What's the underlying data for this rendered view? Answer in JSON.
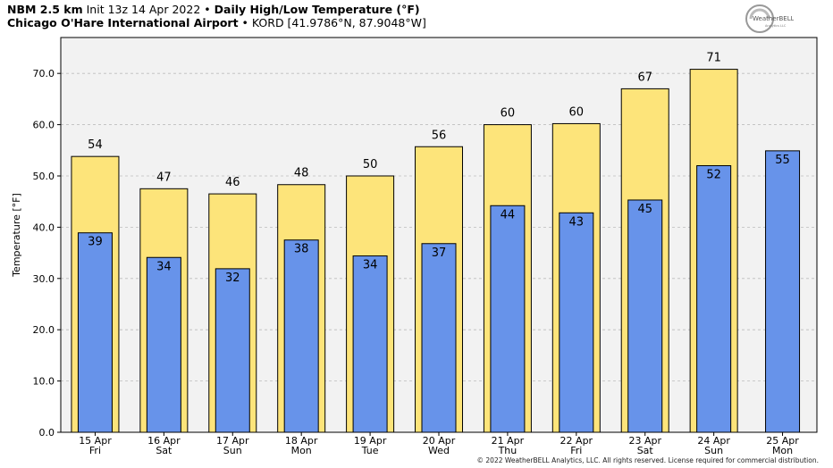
{
  "header": {
    "model_label": "NBM 2.5 km",
    "init_text": "Init 13z 14 Apr 2022",
    "sep": "•",
    "product_title": "Daily High/Low Temperature (°F)",
    "location_name": "Chicago O'Hare International Airport",
    "location_code": "KORD [41.9786°N, 87.9048°W]"
  },
  "logo": {
    "text": "WeatherBELL",
    "sub": "Analytics LLC"
  },
  "footer": {
    "copyright": "© 2022 WeatherBELL Analytics, LLC. All rights reserved. License required for commercial distribution."
  },
  "colors": {
    "high_fill": "#fde47a",
    "low_fill": "#6793ea",
    "plot_bg": "#f2f2f2",
    "grid": "#bdbdbd"
  },
  "chart_data": {
    "type": "bar",
    "title": "Daily High/Low Temperature (°F)",
    "ylabel": "Temperature [°F]",
    "ylim": [
      0,
      77
    ],
    "yticks": [
      "0.0",
      "10.0",
      "20.0",
      "30.0",
      "40.0",
      "50.0",
      "60.0",
      "70.0"
    ],
    "grid": true,
    "categories": [
      [
        "15 Apr",
        "Fri"
      ],
      [
        "16 Apr",
        "Sat"
      ],
      [
        "17 Apr",
        "Sun"
      ],
      [
        "18 Apr",
        "Mon"
      ],
      [
        "19 Apr",
        "Tue"
      ],
      [
        "20 Apr",
        "Wed"
      ],
      [
        "21 Apr",
        "Thu"
      ],
      [
        "22 Apr",
        "Fri"
      ],
      [
        "23 Apr",
        "Sat"
      ],
      [
        "24 Apr",
        "Sun"
      ],
      [
        "25 Apr",
        "Mon"
      ]
    ],
    "high_exact": [
      53.8,
      47.5,
      46.5,
      48.3,
      50.0,
      55.7,
      60.0,
      60.2,
      67.0,
      70.8,
      null
    ],
    "high_labels": [
      "54",
      "47",
      "46",
      "48",
      "50",
      "56",
      "60",
      "60",
      "67",
      "71",
      null
    ],
    "low_exact": [
      38.9,
      34.1,
      31.9,
      37.5,
      34.4,
      36.8,
      44.2,
      42.8,
      45.3,
      52.0,
      54.9
    ],
    "low_labels": [
      "39",
      "34",
      "32",
      "38",
      "34",
      "37",
      "44",
      "43",
      "45",
      "52",
      "55"
    ]
  }
}
